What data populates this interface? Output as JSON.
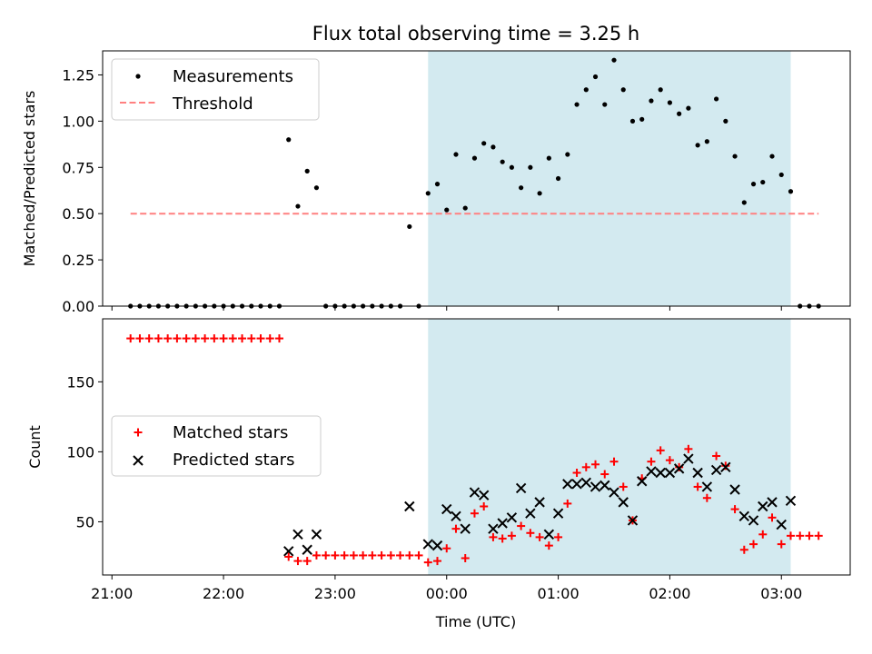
{
  "chart_data": [
    {
      "type": "scatter",
      "title": "Flux total observing time = 3.25 h",
      "xlabel": "",
      "ylabel": "Matched/Predicted stars",
      "xlim": [
        "20:55",
        "03:37"
      ],
      "ylim": [
        0,
        1.38
      ],
      "yticks": [
        "0.00",
        "0.25",
        "0.50",
        "0.75",
        "1.00",
        "1.25"
      ],
      "shaded_span": [
        "23:50",
        "03:05"
      ],
      "shaded_color": "#d3eaf0",
      "legend": {
        "position": "top-left",
        "entries": [
          "Measurements",
          "Threshold"
        ]
      },
      "threshold": {
        "name": "Threshold",
        "value": 0.5,
        "x_range": [
          "21:10",
          "03:20"
        ],
        "color": "#ff8080"
      },
      "series": [
        {
          "name": "Measurements",
          "marker": "dot",
          "color": "#000000",
          "points": [
            [
              "21:10",
              0
            ],
            [
              "21:15",
              0
            ],
            [
              "21:20",
              0
            ],
            [
              "21:25",
              0
            ],
            [
              "21:30",
              0
            ],
            [
              "21:35",
              0
            ],
            [
              "21:40",
              0
            ],
            [
              "21:45",
              0
            ],
            [
              "21:50",
              0
            ],
            [
              "21:55",
              0
            ],
            [
              "22:00",
              0
            ],
            [
              "22:05",
              0
            ],
            [
              "22:10",
              0
            ],
            [
              "22:15",
              0
            ],
            [
              "22:20",
              0
            ],
            [
              "22:25",
              0
            ],
            [
              "22:30",
              0
            ],
            [
              "22:35",
              0.9
            ],
            [
              "22:40",
              0.54
            ],
            [
              "22:45",
              0.73
            ],
            [
              "22:50",
              0.64
            ],
            [
              "22:55",
              0
            ],
            [
              "23:00",
              0
            ],
            [
              "23:05",
              0
            ],
            [
              "23:10",
              0
            ],
            [
              "23:15",
              0
            ],
            [
              "23:20",
              0
            ],
            [
              "23:25",
              0
            ],
            [
              "23:30",
              0
            ],
            [
              "23:35",
              0
            ],
            [
              "23:40",
              0.43
            ],
            [
              "23:45",
              0
            ],
            [
              "23:50",
              0.61
            ],
            [
              "23:55",
              0.66
            ],
            [
              "00:00",
              0.52
            ],
            [
              "00:05",
              0.82
            ],
            [
              "00:10",
              0.53
            ],
            [
              "00:15",
              0.8
            ],
            [
              "00:20",
              0.88
            ],
            [
              "00:25",
              0.86
            ],
            [
              "00:30",
              0.78
            ],
            [
              "00:35",
              0.75
            ],
            [
              "00:40",
              0.64
            ],
            [
              "00:45",
              0.75
            ],
            [
              "00:50",
              0.61
            ],
            [
              "00:55",
              0.8
            ],
            [
              "01:00",
              0.69
            ],
            [
              "01:05",
              0.82
            ],
            [
              "01:10",
              1.09
            ],
            [
              "01:15",
              1.17
            ],
            [
              "01:20",
              1.24
            ],
            [
              "01:25",
              1.09
            ],
            [
              "01:30",
              1.33
            ],
            [
              "01:35",
              1.17
            ],
            [
              "01:40",
              1.0
            ],
            [
              "01:45",
              1.01
            ],
            [
              "01:50",
              1.11
            ],
            [
              "01:55",
              1.17
            ],
            [
              "02:00",
              1.1
            ],
            [
              "02:05",
              1.04
            ],
            [
              "02:10",
              1.07
            ],
            [
              "02:15",
              0.87
            ],
            [
              "02:20",
              0.89
            ],
            [
              "02:25",
              1.12
            ],
            [
              "02:30",
              1.0
            ],
            [
              "02:35",
              0.81
            ],
            [
              "02:40",
              0.56
            ],
            [
              "02:45",
              0.66
            ],
            [
              "02:50",
              0.67
            ],
            [
              "02:55",
              0.81
            ],
            [
              "03:00",
              0.71
            ],
            [
              "03:05",
              0.62
            ],
            [
              "03:10",
              0
            ],
            [
              "03:15",
              0
            ],
            [
              "03:20",
              0
            ]
          ]
        }
      ]
    },
    {
      "type": "scatter",
      "title": "",
      "xlabel": "Time (UTC)",
      "ylabel": "Count",
      "xlim": [
        "20:55",
        "03:37"
      ],
      "ylim": [
        12,
        195
      ],
      "yticks": [
        "50",
        "100",
        "150"
      ],
      "xticks": [
        "21:00",
        "22:00",
        "23:00",
        "00:00",
        "01:00",
        "02:00",
        "03:00"
      ],
      "shaded_span": [
        "23:50",
        "03:05"
      ],
      "legend": {
        "position": "center-left",
        "entries": [
          "Matched stars",
          "Predicted stars"
        ]
      },
      "series": [
        {
          "name": "Matched stars",
          "marker": "plus",
          "color": "#ff0000",
          "points": [
            [
              "21:10",
              181
            ],
            [
              "21:15",
              181
            ],
            [
              "21:20",
              181
            ],
            [
              "21:25",
              181
            ],
            [
              "21:30",
              181
            ],
            [
              "21:35",
              181
            ],
            [
              "21:40",
              181
            ],
            [
              "21:45",
              181
            ],
            [
              "21:50",
              181
            ],
            [
              "21:55",
              181
            ],
            [
              "22:00",
              181
            ],
            [
              "22:05",
              181
            ],
            [
              "22:10",
              181
            ],
            [
              "22:15",
              181
            ],
            [
              "22:20",
              181
            ],
            [
              "22:25",
              181
            ],
            [
              "22:30",
              181
            ],
            [
              "22:35",
              25
            ],
            [
              "22:40",
              22
            ],
            [
              "22:45",
              22
            ],
            [
              "22:50",
              26
            ],
            [
              "22:55",
              26
            ],
            [
              "23:00",
              26
            ],
            [
              "23:05",
              26
            ],
            [
              "23:10",
              26
            ],
            [
              "23:15",
              26
            ],
            [
              "23:20",
              26
            ],
            [
              "23:25",
              26
            ],
            [
              "23:30",
              26
            ],
            [
              "23:35",
              26
            ],
            [
              "23:40",
              26
            ],
            [
              "23:45",
              26
            ],
            [
              "23:50",
              21
            ],
            [
              "23:55",
              22
            ],
            [
              "00:00",
              31
            ],
            [
              "00:05",
              45
            ],
            [
              "00:10",
              24
            ],
            [
              "00:15",
              56
            ],
            [
              "00:20",
              61
            ],
            [
              "00:25",
              39
            ],
            [
              "00:30",
              38
            ],
            [
              "00:35",
              40
            ],
            [
              "00:40",
              47
            ],
            [
              "00:45",
              42
            ],
            [
              "00:50",
              39
            ],
            [
              "00:55",
              33
            ],
            [
              "01:00",
              39
            ],
            [
              "01:05",
              63
            ],
            [
              "01:10",
              85
            ],
            [
              "01:15",
              89
            ],
            [
              "01:20",
              91
            ],
            [
              "01:25",
              84
            ],
            [
              "01:30",
              93
            ],
            [
              "01:35",
              75
            ],
            [
              "01:40",
              51
            ],
            [
              "01:45",
              81
            ],
            [
              "01:50",
              93
            ],
            [
              "01:55",
              101
            ],
            [
              "02:00",
              94
            ],
            [
              "02:05",
              89
            ],
            [
              "02:10",
              102
            ],
            [
              "02:15",
              75
            ],
            [
              "02:20",
              67
            ],
            [
              "02:25",
              97
            ],
            [
              "02:30",
              90
            ],
            [
              "02:35",
              59
            ],
            [
              "02:40",
              30
            ],
            [
              "02:45",
              34
            ],
            [
              "02:50",
              41
            ],
            [
              "02:55",
              53
            ],
            [
              "03:00",
              34
            ],
            [
              "03:05",
              40
            ],
            [
              "03:10",
              40
            ],
            [
              "03:15",
              40
            ],
            [
              "03:20",
              40
            ]
          ]
        },
        {
          "name": "Predicted stars",
          "marker": "x",
          "color": "#000000",
          "points": [
            [
              "22:35",
              29
            ],
            [
              "22:40",
              41
            ],
            [
              "22:45",
              30
            ],
            [
              "22:50",
              41
            ],
            [
              "23:40",
              61
            ],
            [
              "23:50",
              34
            ],
            [
              "23:55",
              33
            ],
            [
              "00:00",
              59
            ],
            [
              "00:05",
              54
            ],
            [
              "00:10",
              45
            ],
            [
              "00:15",
              71
            ],
            [
              "00:20",
              69
            ],
            [
              "00:25",
              45
            ],
            [
              "00:30",
              49
            ],
            [
              "00:35",
              53
            ],
            [
              "00:40",
              74
            ],
            [
              "00:45",
              56
            ],
            [
              "00:50",
              64
            ],
            [
              "00:55",
              41
            ],
            [
              "01:00",
              56
            ],
            [
              "01:05",
              77
            ],
            [
              "01:10",
              77
            ],
            [
              "01:15",
              78
            ],
            [
              "01:20",
              75
            ],
            [
              "01:25",
              76
            ],
            [
              "01:30",
              71
            ],
            [
              "01:35",
              64
            ],
            [
              "01:40",
              51
            ],
            [
              "01:45",
              79
            ],
            [
              "01:50",
              86
            ],
            [
              "01:55",
              85
            ],
            [
              "02:00",
              85
            ],
            [
              "02:05",
              88
            ],
            [
              "02:10",
              95
            ],
            [
              "02:15",
              85
            ],
            [
              "02:20",
              75
            ],
            [
              "02:25",
              87
            ],
            [
              "02:30",
              89
            ],
            [
              "02:35",
              73
            ],
            [
              "02:40",
              54
            ],
            [
              "02:45",
              51
            ],
            [
              "02:50",
              61
            ],
            [
              "02:55",
              64
            ],
            [
              "03:00",
              48
            ],
            [
              "03:05",
              65
            ]
          ]
        }
      ]
    }
  ]
}
